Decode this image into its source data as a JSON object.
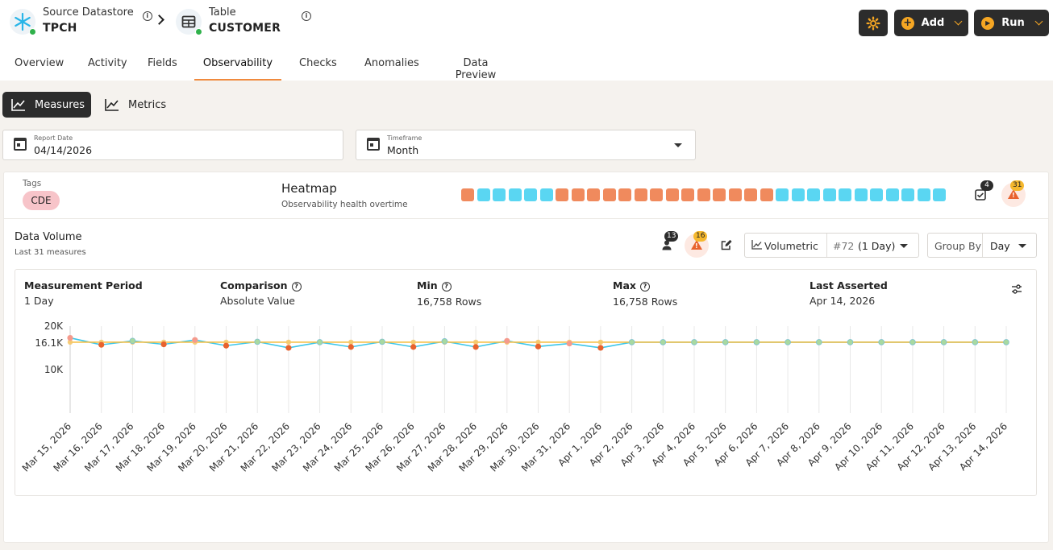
{
  "header": {
    "source": {
      "label": "Source Datastore",
      "value": "TPCH",
      "icon": "snowflake-icon"
    },
    "table": {
      "label": "Table",
      "value": "CUSTOMER",
      "icon": "table-icon"
    },
    "actions": {
      "settings_icon": "gear-icon",
      "add_label": "Add",
      "run_label": "Run"
    }
  },
  "tabs": [
    "Overview",
    "Activity",
    "Fields",
    "Observability",
    "Checks",
    "Anomalies",
    "Data Preview"
  ],
  "active_tab": "Observability",
  "view_toggle": {
    "measures": "Measures",
    "metrics": "Metrics"
  },
  "filters": {
    "report_date": {
      "label": "Report Date",
      "value": "04/14/2026"
    },
    "timeframe": {
      "label": "Timeframe",
      "value": "Month"
    }
  },
  "tags_section": {
    "label": "Tags",
    "tags": [
      "CDE"
    ]
  },
  "heatmap": {
    "title": "Heatmap",
    "subtitle": "Observability health overtime",
    "cells": [
      "anomaly",
      "ok",
      "ok",
      "ok",
      "ok",
      "ok",
      "anomaly",
      "anomaly",
      "anomaly",
      "anomaly",
      "anomaly",
      "anomaly",
      "anomaly",
      "anomaly",
      "anomaly",
      "anomaly",
      "anomaly",
      "anomaly",
      "anomaly",
      "anomaly",
      "ok",
      "ok",
      "ok",
      "ok",
      "ok",
      "ok",
      "ok",
      "ok",
      "ok",
      "ok",
      "ok"
    ],
    "checks_count": "4",
    "anomalies_count": "31"
  },
  "volume": {
    "title": "Data Volume",
    "subtitle": "Last 31 measures",
    "checks_count": "13",
    "anomalies_count": "16",
    "check_type": "Volumetric",
    "check_id": "#72",
    "check_period": "(1 Day)",
    "group_by_label": "Group By",
    "group_by_value": "Day"
  },
  "stats": {
    "measurement_period": {
      "label": "Measurement Period",
      "value": "1 Day"
    },
    "comparison": {
      "label": "Comparison",
      "value": "Absolute Value"
    },
    "min": {
      "label": "Min",
      "value": "16,758 Rows"
    },
    "max": {
      "label": "Max",
      "value": "16,758 Rows"
    },
    "last_asserted": {
      "label": "Last Asserted",
      "value": "Apr 14, 2026"
    }
  },
  "colors": {
    "anomaly": "#f08a5d",
    "ok": "#5ad6f2",
    "accent": "#f5a623",
    "dark": "#2c2c2c",
    "tag_bg": "#f7c4c9"
  },
  "chart_data": {
    "type": "line",
    "ytick_labels": [
      "20K",
      "16.1K",
      "10K"
    ],
    "ytick_values": [
      20000,
      16100,
      10000
    ],
    "ylim": [
      0,
      21000
    ],
    "x": [
      "Mar 15, 2026",
      "Mar 16, 2026",
      "Mar 17, 2026",
      "Mar 18, 2026",
      "Mar 19, 2026",
      "Mar 20, 2026",
      "Mar 21, 2026",
      "Mar 22, 2026",
      "Mar 23, 2026",
      "Mar 24, 2026",
      "Mar 25, 2026",
      "Mar 26, 2026",
      "Mar 27, 2026",
      "Mar 28, 2026",
      "Mar 29, 2026",
      "Mar 30, 2026",
      "Mar 31, 2026",
      "Apr 1, 2026",
      "Apr 2, 2026",
      "Apr 3, 2026",
      "Apr 4, 2026",
      "Apr 5, 2026",
      "Apr 6, 2026",
      "Apr 7, 2026",
      "Apr 8, 2026",
      "Apr 9, 2026",
      "Apr 10, 2026",
      "Apr 11, 2026",
      "Apr 12, 2026",
      "Apr 13, 2026",
      "Apr 14, 2026"
    ],
    "series": [
      {
        "values": [
          17300,
          15700,
          16600,
          15800,
          16800,
          15500,
          16400,
          15000,
          16300,
          15200,
          16400,
          15200,
          16500,
          15200,
          16600,
          15300,
          16000,
          15000,
          16300,
          16300,
          16300,
          16300,
          16300,
          16300,
          16300,
          16300,
          16300,
          16300,
          16300,
          16300,
          16300
        ],
        "color": "#3cc6e8"
      },
      {
        "values": [
          16300,
          16300,
          16300,
          16300,
          16300,
          16300,
          16300,
          16300,
          16300,
          16300,
          16300,
          16300,
          16300,
          16300,
          16300,
          16300,
          16300,
          16300,
          16300,
          16300,
          16300,
          16300,
          16300,
          16300,
          16300,
          16300,
          16300,
          16300,
          16300,
          16300,
          16300
        ],
        "color": "#f5c04a"
      }
    ],
    "anomaly_points": [
      0,
      1,
      3,
      4,
      5,
      7,
      9,
      11,
      13,
      14,
      15,
      16,
      17
    ],
    "grid": true
  }
}
